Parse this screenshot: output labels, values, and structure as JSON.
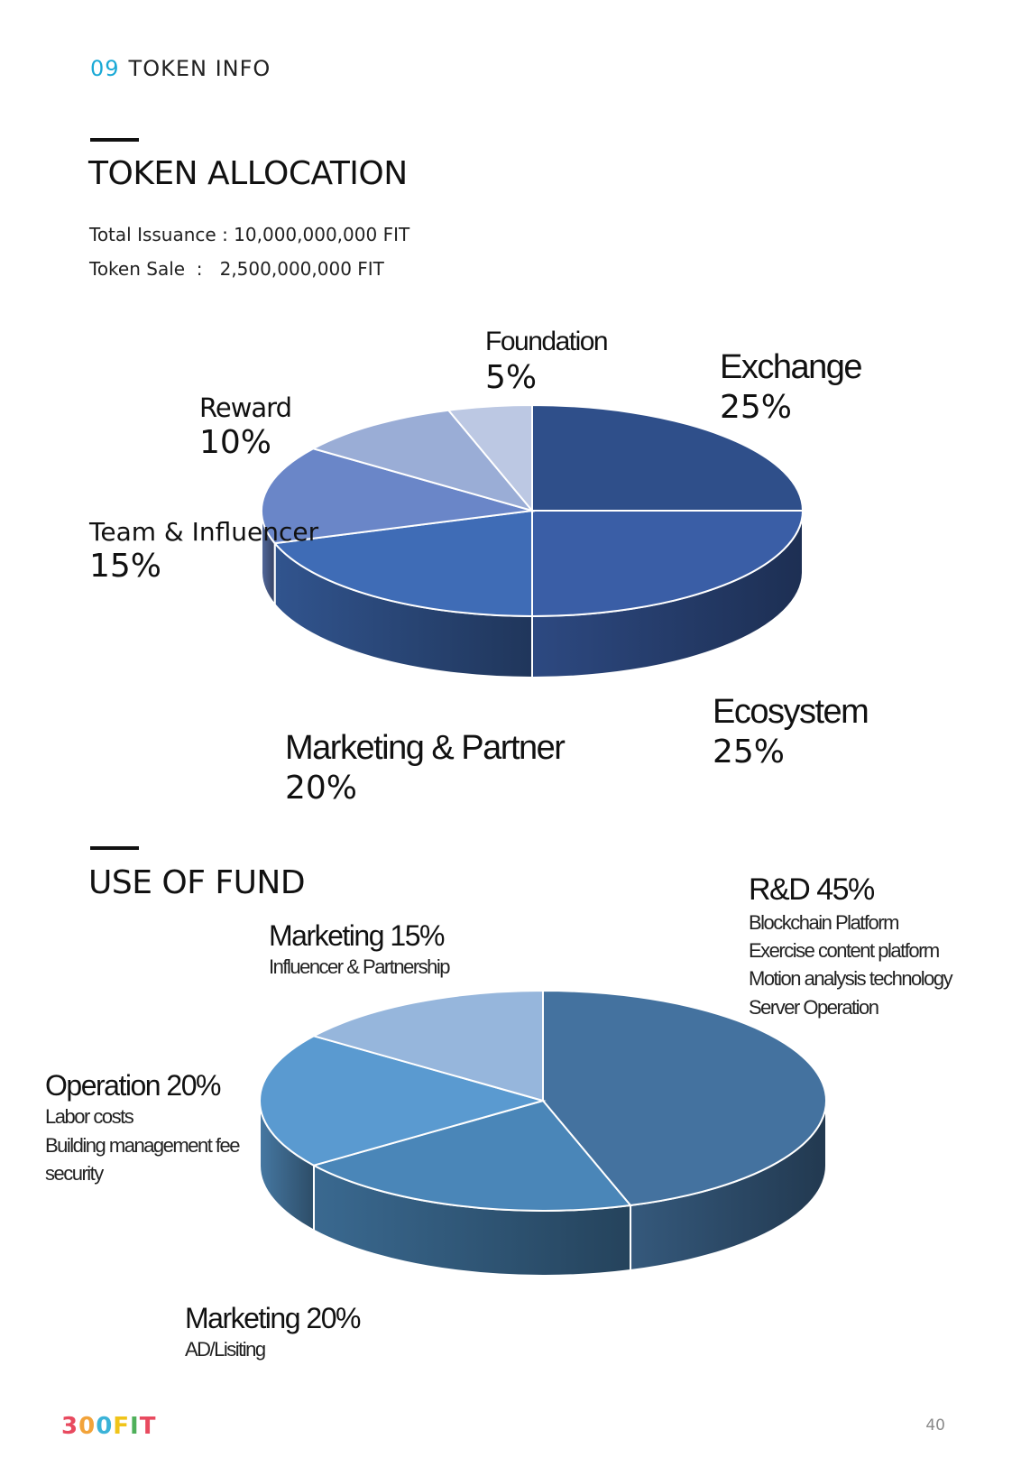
{
  "header": {
    "number": "09",
    "title": "TOKEN INFO"
  },
  "allocation": {
    "title": "TOKEN ALLOCATION",
    "total_issuance": "Total Issuance : 10,000,000,000 FIT",
    "token_sale": "Token Sale  :   2,500,000,000 FIT"
  },
  "fund": {
    "title": "USE OF FUND"
  },
  "chart_data": [
    {
      "type": "pie",
      "title": "TOKEN ALLOCATION",
      "labels": [
        "Exchange",
        "Ecosystem",
        "Marketing & Partner",
        "Team & Influencer",
        "Reward",
        "Foundation"
      ],
      "values": [
        25,
        25,
        20,
        15,
        10,
        5
      ],
      "value_labels": [
        "25%",
        "25%",
        "20%",
        "15%",
        "10%",
        "5%"
      ],
      "colors": [
        "#2f4f8a",
        "#3a5ea6",
        "#3f6cb6",
        "#6a86c8",
        "#9aadd6",
        "#bcc8e3"
      ],
      "style": "3d"
    },
    {
      "type": "pie",
      "title": "USE OF FUND",
      "labels": [
        "R&D",
        "Marketing",
        "Operation",
        "Marketing"
      ],
      "values": [
        45,
        20,
        20,
        15
      ],
      "value_labels": [
        "R&D 45%",
        "Marketing 20%",
        "Operation 20%",
        "Marketing 15%"
      ],
      "details": [
        [
          "Blockchain Platform",
          "Exercise content platform",
          "Motion analysis technology",
          "Server Operation"
        ],
        [
          "AD/Lisiting"
        ],
        [
          "Labor costs",
          "Building management fee",
          "security"
        ],
        [
          "Influencer & Partnership"
        ]
      ],
      "colors": [
        "#44729f",
        "#4a86b8",
        "#5a9ad0",
        "#96b6dc"
      ],
      "style": "3d"
    }
  ],
  "footer": {
    "logo_letters": [
      "3",
      "0",
      "0",
      "F",
      "I",
      "T"
    ],
    "logo_colors": [
      "#e84a5f",
      "#f2a33a",
      "#3bb3d8",
      "#f0c419",
      "#4fb05a",
      "#e84a5f"
    ],
    "page_number": "40"
  }
}
